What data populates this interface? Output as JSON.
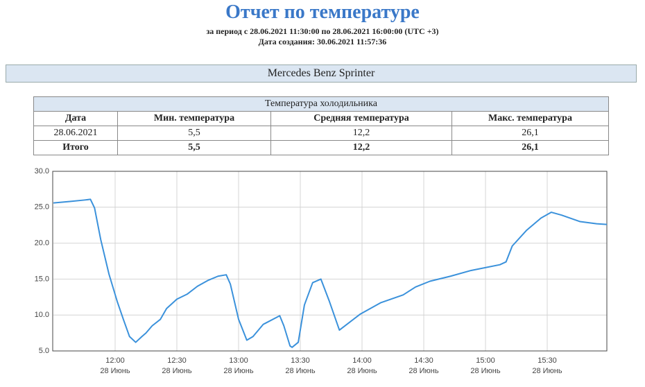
{
  "header": {
    "title": "Отчет по температуре",
    "period": "за период с 28.06.2021 11:30:00 по 28.06.2021 16:00:00 (UTC +3)",
    "created": "Дата создания: 30.06.2021 11:57:36"
  },
  "vehicle": "Mercedes Benz Sprinter",
  "table": {
    "caption": "Температура холодильника",
    "headers": [
      "Дата",
      "Мин. температура",
      "Средняя температура",
      "Макс. температура"
    ],
    "rows": [
      [
        "28.06.2021",
        "5,5",
        "12,2",
        "26,1"
      ],
      [
        "Итого",
        "5,5",
        "12,2",
        "26,1"
      ]
    ]
  },
  "chart_data": {
    "type": "line",
    "x": [
      "11:30",
      "11:38",
      "11:45",
      "11:48",
      "11:50",
      "11:53",
      "11:57",
      "12:01",
      "12:04",
      "12:07",
      "12:10",
      "12:13",
      "12:15",
      "12:18",
      "12:22",
      "12:25",
      "12:30",
      "12:35",
      "12:40",
      "12:45",
      "12:50",
      "12:54",
      "12:56",
      "13:00",
      "13:04",
      "13:07",
      "13:12",
      "13:20",
      "13:22",
      "13:25",
      "13:26",
      "13:29",
      "13:32",
      "13:36",
      "13:40",
      "13:44",
      "13:49",
      "13:54",
      "13:59",
      "14:09",
      "14:20",
      "14:26",
      "14:33",
      "14:43",
      "14:53",
      "15:07",
      "15:10",
      "15:13",
      "15:20",
      "15:27",
      "15:32",
      "15:37",
      "15:46",
      "15:54",
      "15:59"
    ],
    "series": [
      {
        "color": "#3a91db",
        "values": [
          25.6,
          25.8,
          26.0,
          26.1,
          24.9,
          20.5,
          15.7,
          11.9,
          9.4,
          7.0,
          6.2,
          7.0,
          7.5,
          8.5,
          9.4,
          10.9,
          12.2,
          12.9,
          14.0,
          14.8,
          15.4,
          15.6,
          14.3,
          9.4,
          6.5,
          7.0,
          8.7,
          9.9,
          8.5,
          5.7,
          5.5,
          6.2,
          11.4,
          14.5,
          15.0,
          12.0,
          7.9,
          9.0,
          10.1,
          11.7,
          12.8,
          13.9,
          14.7,
          15.4,
          16.2,
          17.0,
          17.4,
          19.6,
          21.8,
          23.5,
          24.3,
          23.9,
          23.0,
          22.7,
          22.6
        ]
      }
    ],
    "xlim": [
      "11:30",
      "16:00"
    ],
    "xticks": [
      "12:00",
      "12:30",
      "13:00",
      "13:30",
      "14:00",
      "14:30",
      "15:00",
      "15:30"
    ],
    "xtick_dates": [
      "28 Июнь",
      "28 Июнь",
      "28 Июнь",
      "28 Июнь",
      "28 Июнь",
      "28 Июнь",
      "28 Июнь",
      "28 Июнь"
    ],
    "ylim": [
      5,
      30
    ],
    "yticks": [
      {
        "value": 5,
        "label": "5.0"
      },
      {
        "value": 10,
        "label": "10.0"
      },
      {
        "value": 15,
        "label": "15.0"
      },
      {
        "value": 20,
        "label": "20.0"
      },
      {
        "value": 25,
        "label": "25.0"
      },
      {
        "value": 30,
        "label": "30.0"
      }
    ],
    "grid": true
  }
}
